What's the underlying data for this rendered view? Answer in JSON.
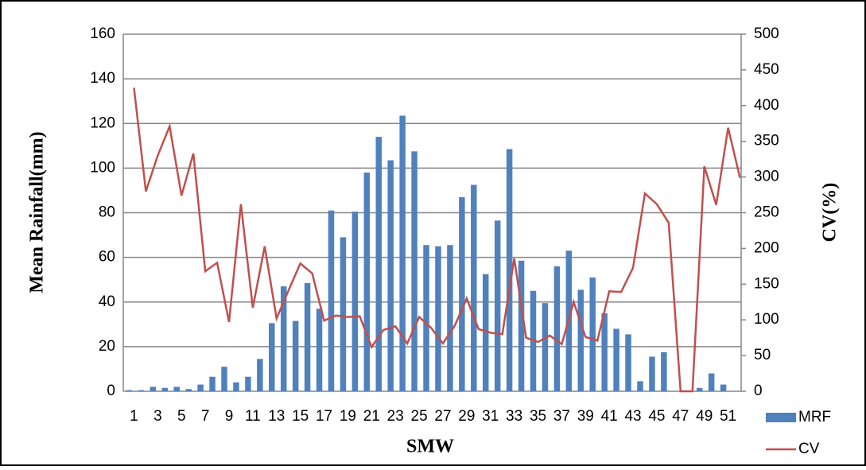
{
  "chart_data": {
    "type": "bar",
    "x_label": "SMW",
    "y_label": "Mean Rainfall(mm)",
    "y2_label": "CV(%)",
    "categories": [
      1,
      null,
      3,
      null,
      5,
      null,
      7,
      null,
      9,
      null,
      11,
      null,
      13,
      null,
      15,
      null,
      17,
      null,
      19,
      null,
      21,
      null,
      23,
      null,
      25,
      null,
      27,
      null,
      29,
      null,
      31,
      null,
      33,
      null,
      35,
      null,
      37,
      null,
      39,
      null,
      41,
      null,
      43,
      null,
      45,
      null,
      47,
      null,
      49,
      null,
      51,
      null
    ],
    "series": [
      {
        "name": "MRF",
        "type": "bar",
        "color": "#4f81bd",
        "values": [
          0.5,
          0.5,
          2,
          1.5,
          2,
          1,
          3,
          6.5,
          11,
          4,
          6.5,
          14.5,
          30.5,
          47,
          31.5,
          48.5,
          37,
          81,
          69,
          80.5,
          98,
          114,
          103.5,
          123.5,
          107.5,
          65.5,
          65,
          65.5,
          87,
          92.5,
          52.5,
          76.5,
          108.5,
          58.5,
          45,
          39.5,
          56,
          63,
          45.5,
          51,
          35,
          28,
          25.5,
          4.5,
          15.5,
          17.5,
          0,
          0,
          1.5,
          8,
          3,
          0
        ]
      },
      {
        "name": "CV",
        "type": "line",
        "axis": "y2",
        "color": "#c0504d",
        "values": [
          425,
          280,
          330,
          371,
          274,
          333,
          168,
          180,
          97,
          262,
          117,
          203,
          102,
          141,
          179,
          165,
          99,
          106,
          104,
          105,
          62,
          86,
          91,
          67,
          104,
          89,
          67,
          92,
          130,
          87,
          82,
          80,
          186,
          75,
          69,
          78,
          66,
          125,
          76,
          71,
          140,
          139,
          173,
          277,
          262,
          236,
          0,
          0,
          315,
          261,
          369,
          299
        ]
      }
    ],
    "ylim": [
      0,
      160
    ],
    "yticks": [
      0,
      20,
      40,
      60,
      80,
      100,
      120,
      140,
      160
    ],
    "y2lim": [
      0,
      500
    ],
    "y2ticks": [
      0,
      50,
      100,
      150,
      200,
      250,
      300,
      350,
      400,
      450,
      500
    ],
    "grid": true,
    "legend": "bottom-right"
  }
}
